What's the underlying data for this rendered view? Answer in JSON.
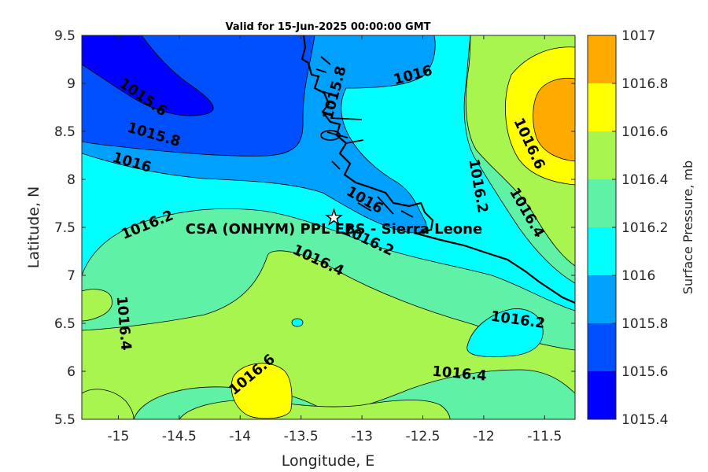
{
  "chart_data": {
    "type": "contour",
    "title": "Valid for 15-Jun-2025 00:00:00 GMT",
    "xlabel": "Longitude, E",
    "ylabel": "Latitude, N",
    "xlim": [
      -15.3,
      -11.25
    ],
    "ylim": [
      5.5,
      9.5
    ],
    "xticks": [
      -15,
      -14.5,
      -14,
      -13.5,
      -13,
      -12.5,
      -12,
      -11.5
    ],
    "xtick_labels": [
      "-15",
      "-14.5",
      "-14",
      "-13.5",
      "-13",
      "-12.5",
      "-12",
      "-11.5"
    ],
    "yticks": [
      5.5,
      6,
      6.5,
      7,
      7.5,
      8,
      8.5,
      9,
      9.5
    ],
    "ytick_labels": [
      "5.5",
      "6",
      "6.5",
      "7",
      "7.5",
      "8",
      "8.5",
      "9",
      "9.5"
    ],
    "colorbar": {
      "label": "Surface Pressure, mb",
      "levels": [
        1015.4,
        1015.6,
        1015.8,
        1016,
        1016.2,
        1016.4,
        1016.6,
        1016.8,
        1017
      ],
      "tick_labels": [
        "1015.4",
        "1015.6",
        "1015.8",
        "1016",
        "1016.2",
        "1016.4",
        "1016.6",
        "1016.8",
        "1017"
      ],
      "colors": [
        "#0000ff",
        "#0050ff",
        "#00a0ff",
        "#00ffff",
        "#5ff2a6",
        "#a8f550",
        "#ffff00",
        "#ffaa00",
        "#ff5500"
      ]
    },
    "site": {
      "name": "CSA (ONHYM) PPL EBS  - Sierra Leone",
      "lon": -13.23,
      "lat": 7.6
    },
    "contour_labels": [
      {
        "text": "1015.6",
        "lon": -14.8,
        "lat": 8.85,
        "angle": 35
      },
      {
        "text": "1015.8",
        "lon": -14.71,
        "lat": 8.46,
        "angle": 16
      },
      {
        "text": "1015.8",
        "lon": -13.22,
        "lat": 8.9,
        "angle": -75
      },
      {
        "text": "1016",
        "lon": -14.89,
        "lat": 8.17,
        "angle": 16
      },
      {
        "text": "1016",
        "lon": -12.58,
        "lat": 9.08,
        "angle": -15
      },
      {
        "text": "1016",
        "lon": -12.98,
        "lat": 7.78,
        "angle": 30
      },
      {
        "text": "1016.2",
        "lon": -14.76,
        "lat": 7.52,
        "angle": -22
      },
      {
        "text": "1016.2",
        "lon": -12.95,
        "lat": 7.36,
        "angle": 25
      },
      {
        "text": "1016.2",
        "lon": -12.05,
        "lat": 7.93,
        "angle": 80
      },
      {
        "text": "1016.2",
        "lon": -11.72,
        "lat": 6.53,
        "angle": 8
      },
      {
        "text": "1016.4",
        "lon": -13.36,
        "lat": 7.15,
        "angle": 25
      },
      {
        "text": "1016.4",
        "lon": -14.96,
        "lat": 6.5,
        "angle": 85
      },
      {
        "text": "1016.4",
        "lon": -12.2,
        "lat": 5.97,
        "angle": 5
      },
      {
        "text": "1016.4",
        "lon": -11.65,
        "lat": 7.65,
        "angle": 60
      },
      {
        "text": "1016.6",
        "lon": -11.63,
        "lat": 8.37,
        "angle": 65
      },
      {
        "text": "1016.6",
        "lon": -13.9,
        "lat": 5.96,
        "angle": -40
      }
    ]
  }
}
